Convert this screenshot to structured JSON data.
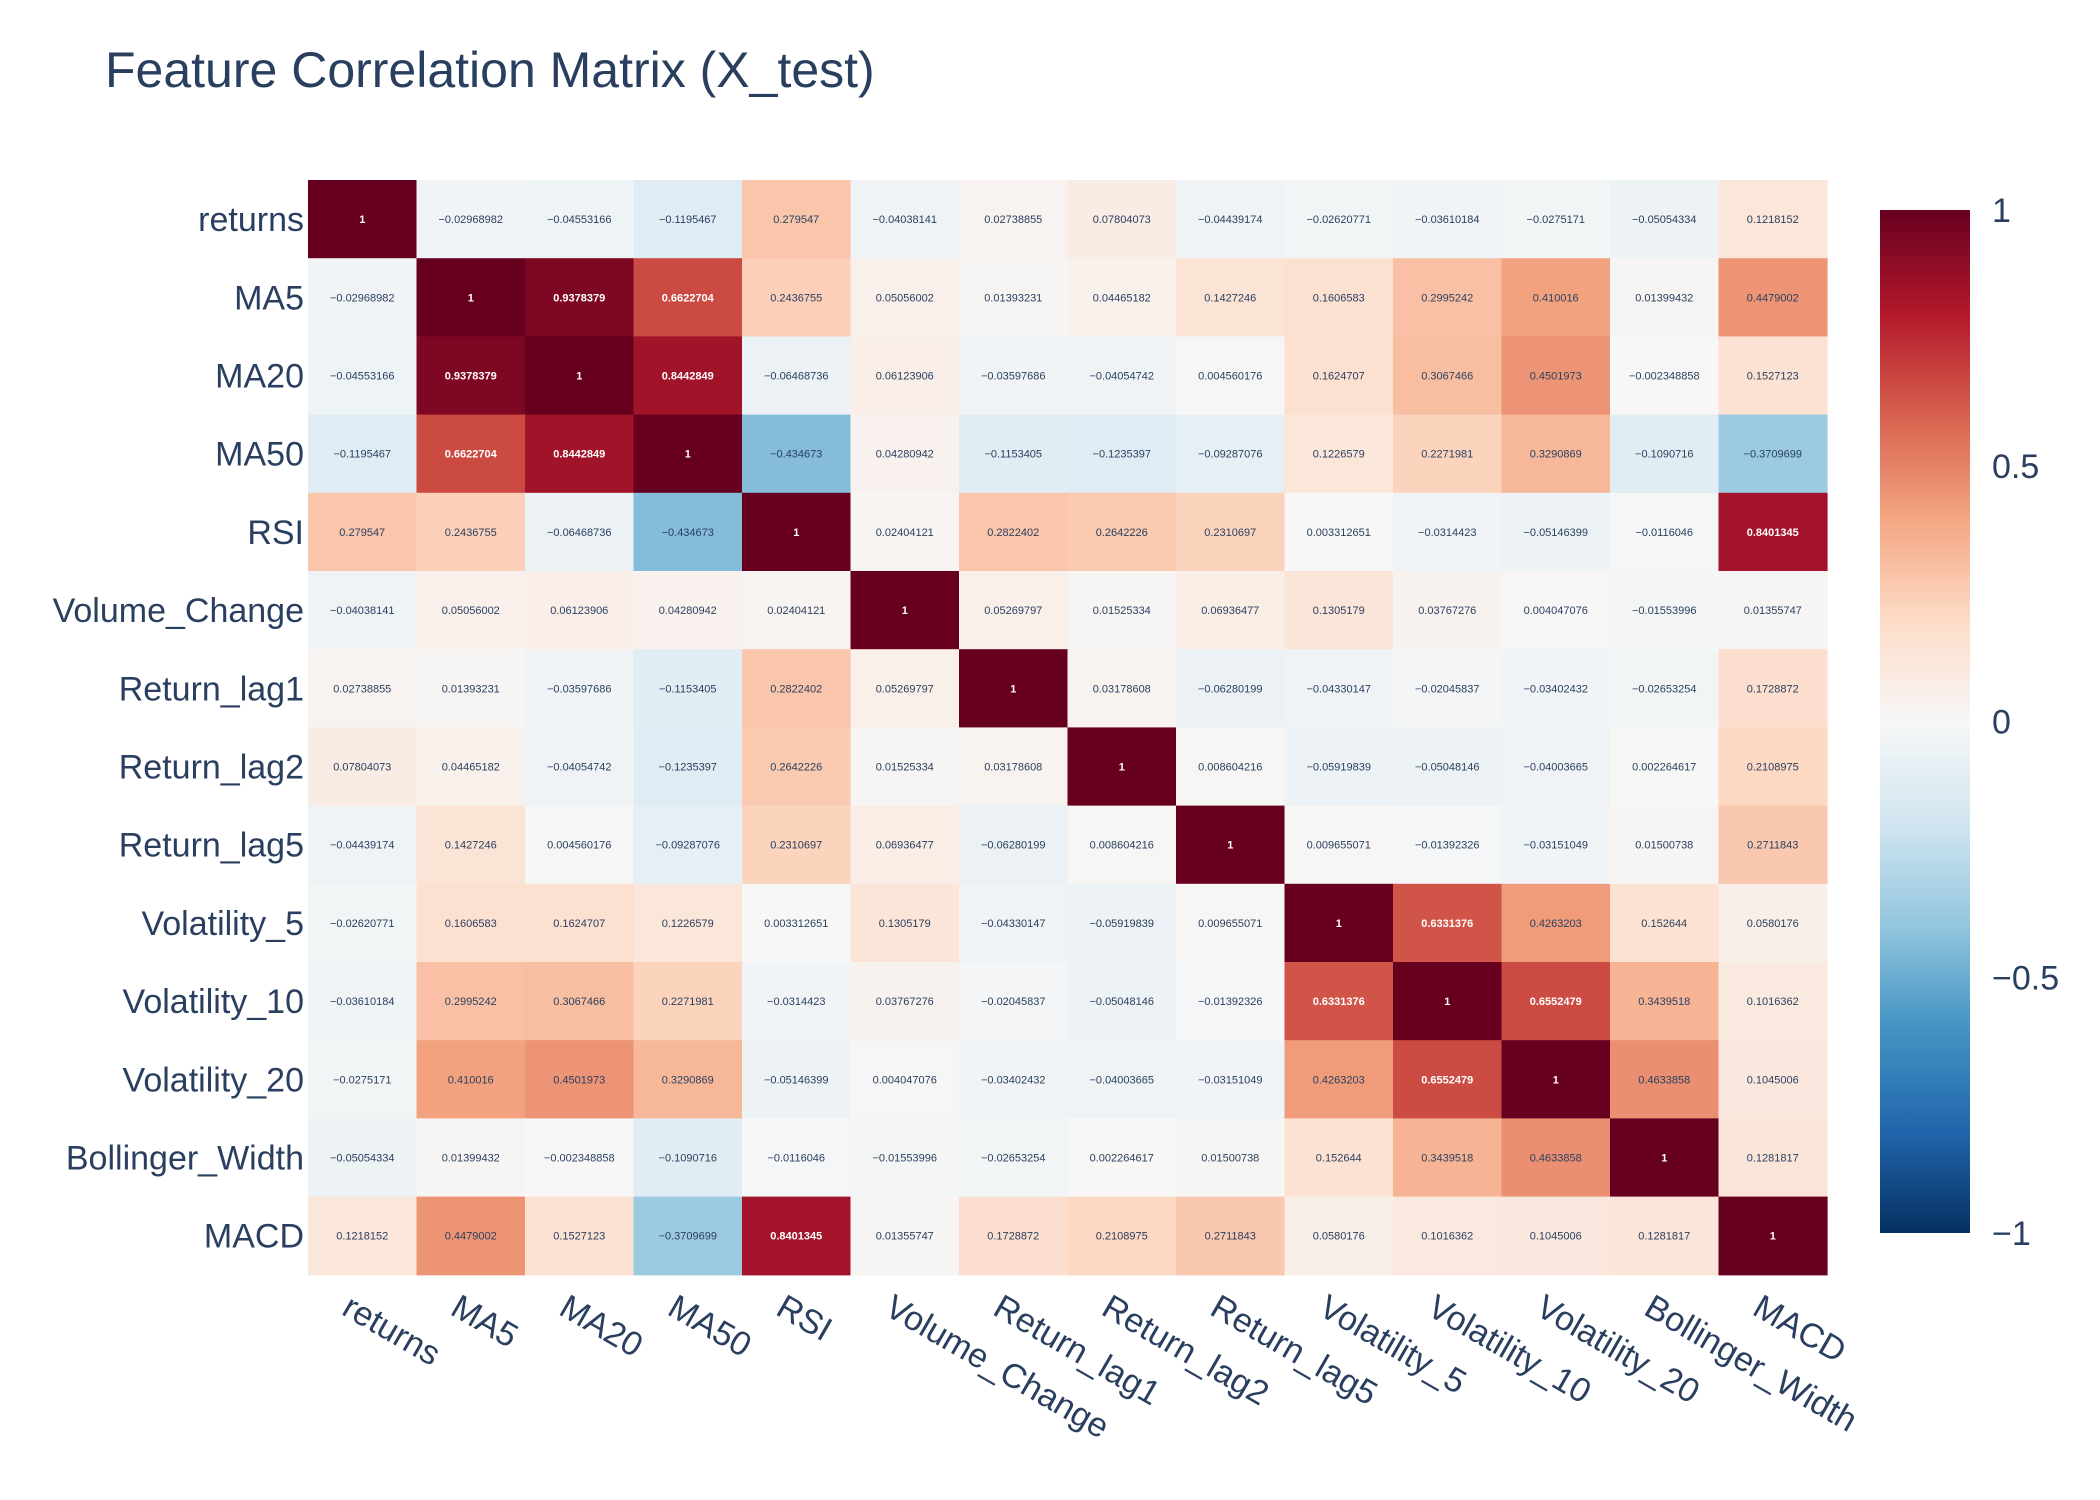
{
  "chart_data": {
    "type": "heatmap",
    "title": "Feature Correlation Matrix (X_test)",
    "labels": [
      "returns",
      "MA5",
      "MA20",
      "MA50",
      "RSI",
      "Volume_Change",
      "Return_lag1",
      "Return_lag2",
      "Return_lag5",
      "Volatility_5",
      "Volatility_10",
      "Volatility_20",
      "Bollinger_Width",
      "MACD"
    ],
    "values": [
      [
        "1",
        "−0.02968982",
        "−0.04553166",
        "−0.1195467",
        "0.279547",
        "−0.04038141",
        "0.02738855",
        "0.07804073",
        "−0.04439174",
        "−0.02620771",
        "−0.03610184",
        "−0.0275171",
        "−0.05054334",
        "0.1218152"
      ],
      [
        "−0.02968982",
        "1",
        "0.9378379",
        "0.6622704",
        "0.2436755",
        "0.05056002",
        "0.01393231",
        "0.04465182",
        "0.1427246",
        "0.1606583",
        "0.2995242",
        "0.410016",
        "0.01399432",
        "0.4479002"
      ],
      [
        "−0.04553166",
        "0.9378379",
        "1",
        "0.8442849",
        "−0.06468736",
        "0.06123906",
        "−0.03597686",
        "−0.04054742",
        "0.004560176",
        "0.1624707",
        "0.3067466",
        "0.4501973",
        "−0.002348858",
        "0.1527123"
      ],
      [
        "−0.1195467",
        "0.6622704",
        "0.8442849",
        "1",
        "−0.434673",
        "0.04280942",
        "−0.1153405",
        "−0.1235397",
        "−0.09287076",
        "0.1226579",
        "0.2271981",
        "0.3290869",
        "−0.1090716",
        "−0.3709699"
      ],
      [
        "0.279547",
        "0.2436755",
        "−0.06468736",
        "−0.434673",
        "1",
        "0.02404121",
        "0.2822402",
        "0.2642226",
        "0.2310697",
        "0.003312651",
        "−0.0314423",
        "−0.05146399",
        "−0.0116046",
        "0.8401345"
      ],
      [
        "−0.04038141",
        "0.05056002",
        "0.06123906",
        "0.04280942",
        "0.02404121",
        "1",
        "0.05269797",
        "0.01525334",
        "0.06936477",
        "0.1305179",
        "0.03767276",
        "0.004047076",
        "−0.01553996",
        "0.01355747"
      ],
      [
        "0.02738855",
        "0.01393231",
        "−0.03597686",
        "−0.1153405",
        "0.2822402",
        "0.05269797",
        "1",
        "0.03178608",
        "−0.06280199",
        "−0.04330147",
        "−0.02045837",
        "−0.03402432",
        "−0.02653254",
        "0.1728872"
      ],
      [
        "0.07804073",
        "0.04465182",
        "−0.04054742",
        "−0.1235397",
        "0.2642226",
        "0.01525334",
        "0.03178608",
        "1",
        "0.008604216",
        "−0.05919839",
        "−0.05048146",
        "−0.04003665",
        "0.002264617",
        "0.2108975"
      ],
      [
        "−0.04439174",
        "0.1427246",
        "0.004560176",
        "−0.09287076",
        "0.2310697",
        "0.06936477",
        "−0.06280199",
        "0.008604216",
        "1",
        "0.009655071",
        "−0.01392326",
        "−0.03151049",
        "0.01500738",
        "0.2711843"
      ],
      [
        "−0.02620771",
        "0.1606583",
        "0.1624707",
        "0.1226579",
        "0.003312651",
        "0.1305179",
        "−0.04330147",
        "−0.05919839",
        "0.009655071",
        "1",
        "0.6331376",
        "0.4263203",
        "0.152644",
        "0.0580176"
      ],
      [
        "−0.03610184",
        "0.2995242",
        "0.3067466",
        "0.2271981",
        "−0.0314423",
        "0.03767276",
        "−0.02045837",
        "−0.05048146",
        "−0.01392326",
        "0.6331376",
        "1",
        "0.6552479",
        "0.3439518",
        "0.1016362"
      ],
      [
        "−0.0275171",
        "0.410016",
        "0.4501973",
        "0.3290869",
        "−0.05146399",
        "0.004047076",
        "−0.03402432",
        "−0.04003665",
        "−0.03151049",
        "0.4263203",
        "0.6552479",
        "1",
        "0.4633858",
        "0.1045006"
      ],
      [
        "−0.05054334",
        "0.01399432",
        "−0.002348858",
        "−0.1090716",
        "−0.0116046",
        "−0.01553996",
        "−0.02653254",
        "0.002264617",
        "0.01500738",
        "0.152644",
        "0.3439518",
        "0.4633858",
        "1",
        "0.1281817"
      ],
      [
        "0.1218152",
        "0.4479002",
        "0.1527123",
        "−0.3709699",
        "0.8401345",
        "0.01355747",
        "0.1728872",
        "0.2108975",
        "0.2711843",
        "0.0580176",
        "0.1016362",
        "0.1045006",
        "0.1281817",
        "1"
      ]
    ],
    "zmin": -1,
    "zmax": 1,
    "colorscale": "RdBu",
    "colorbar_ticks": [
      {
        "value": 1,
        "label": "1"
      },
      {
        "value": 0.5,
        "label": "0.5"
      },
      {
        "value": 0,
        "label": "0"
      },
      {
        "value": -0.5,
        "label": "−0.5"
      },
      {
        "value": -1,
        "label": "−1"
      }
    ]
  }
}
